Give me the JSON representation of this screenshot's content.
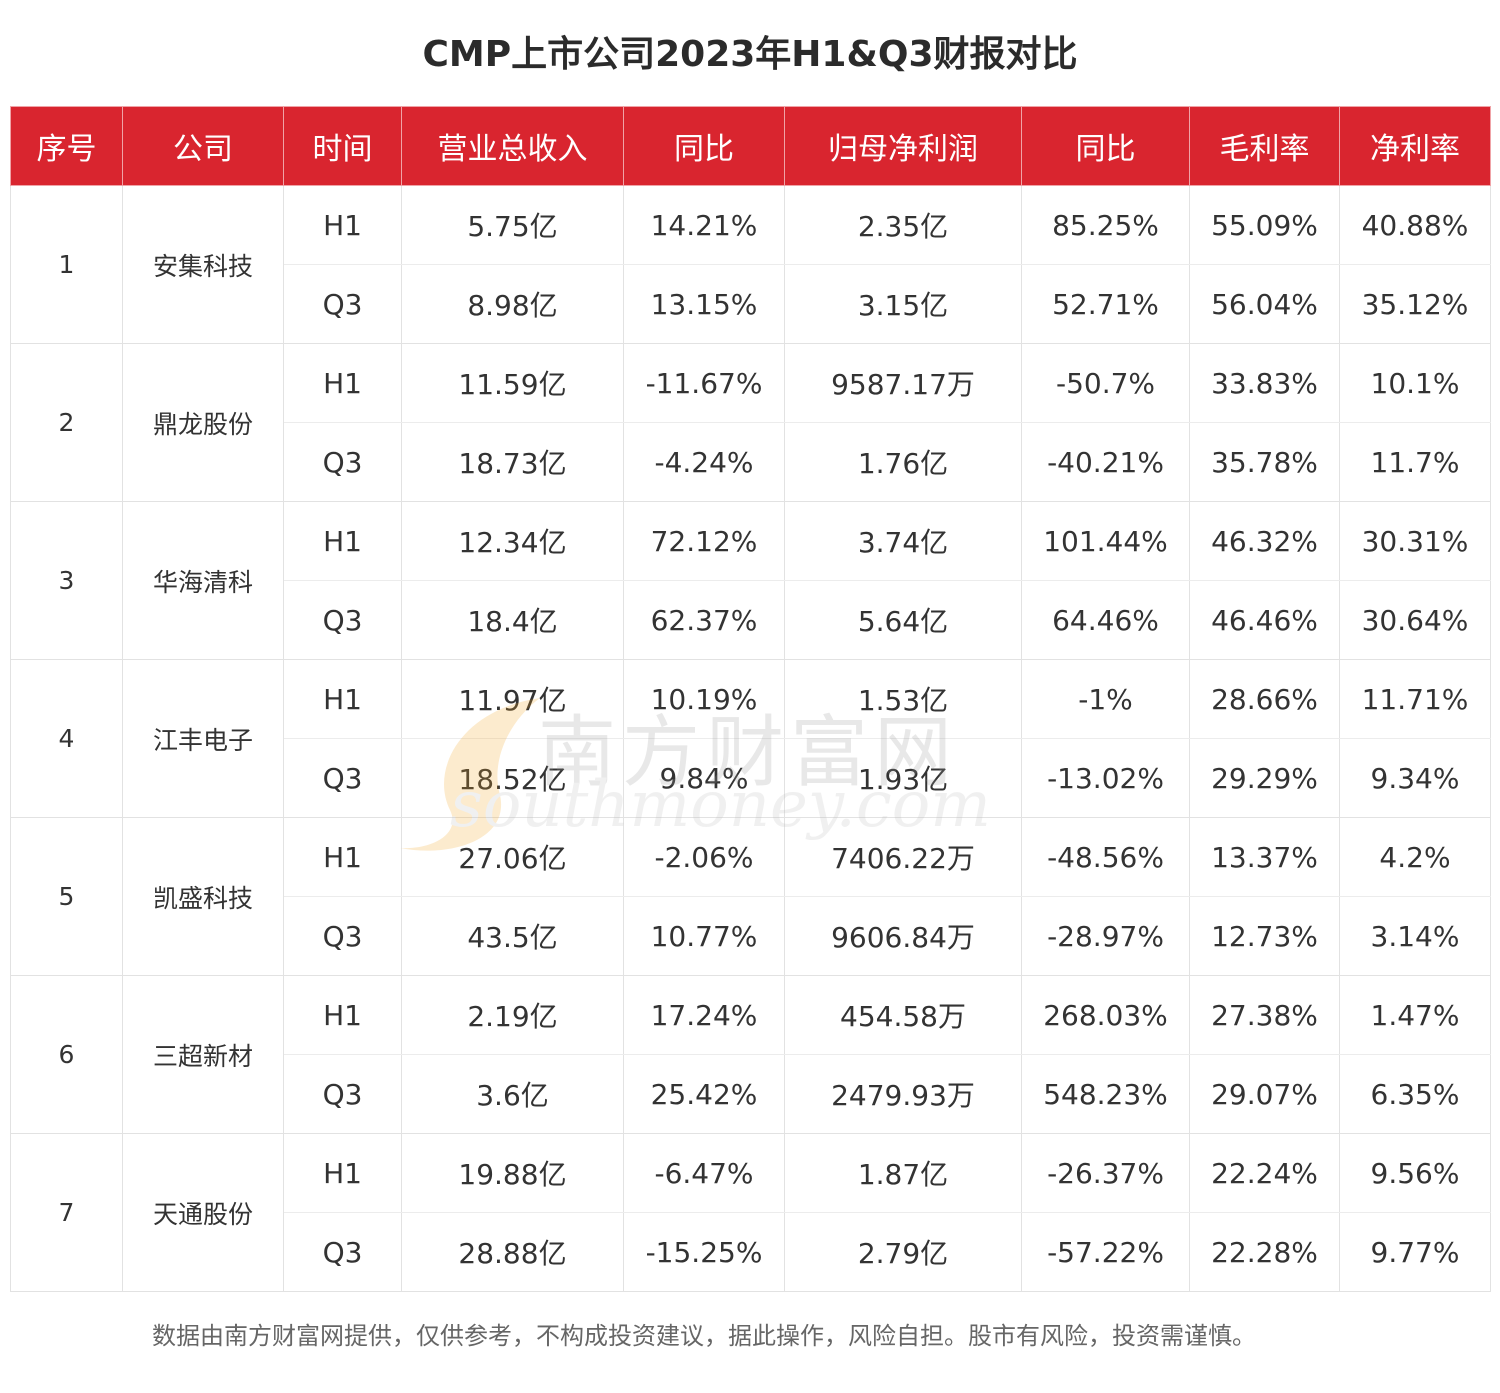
{
  "title": "CMP上市公司2023年H1&Q3财报对比",
  "headers": [
    "序号",
    "公司",
    "时间",
    "营业总收入",
    "同比",
    "归母净利润",
    "同比",
    "毛利率",
    "净利率"
  ],
  "rows": [
    {
      "idx": "1",
      "company": "安集科技",
      "periods": [
        {
          "period": "H1",
          "values": [
            "5.75亿",
            "14.21%",
            "2.35亿",
            "85.25%",
            "55.09%",
            "40.88%"
          ]
        },
        {
          "period": "Q3",
          "values": [
            "8.98亿",
            "13.15%",
            "3.15亿",
            "52.71%",
            "56.04%",
            "35.12%"
          ]
        }
      ]
    },
    {
      "idx": "2",
      "company": "鼎龙股份",
      "periods": [
        {
          "period": "H1",
          "values": [
            "11.59亿",
            "-11.67%",
            "9587.17万",
            "-50.7%",
            "33.83%",
            "10.1%"
          ]
        },
        {
          "period": "Q3",
          "values": [
            "18.73亿",
            "-4.24%",
            "1.76亿",
            "-40.21%",
            "35.78%",
            "11.7%"
          ]
        }
      ]
    },
    {
      "idx": "3",
      "company": "华海清科",
      "periods": [
        {
          "period": "H1",
          "values": [
            "12.34亿",
            "72.12%",
            "3.74亿",
            "101.44%",
            "46.32%",
            "30.31%"
          ]
        },
        {
          "period": "Q3",
          "values": [
            "18.4亿",
            "62.37%",
            "5.64亿",
            "64.46%",
            "46.46%",
            "30.64%"
          ]
        }
      ]
    },
    {
      "idx": "4",
      "company": "江丰电子",
      "periods": [
        {
          "period": "H1",
          "values": [
            "11.97亿",
            "10.19%",
            "1.53亿",
            "-1%",
            "28.66%",
            "11.71%"
          ]
        },
        {
          "period": "Q3",
          "values": [
            "18.52亿",
            "9.84%",
            "1.93亿",
            "-13.02%",
            "29.29%",
            "9.34%"
          ]
        }
      ]
    },
    {
      "idx": "5",
      "company": "凯盛科技",
      "periods": [
        {
          "period": "H1",
          "values": [
            "27.06亿",
            "-2.06%",
            "7406.22万",
            "-48.56%",
            "13.37%",
            "4.2%"
          ]
        },
        {
          "period": "Q3",
          "values": [
            "43.5亿",
            "10.77%",
            "9606.84万",
            "-28.97%",
            "12.73%",
            "3.14%"
          ]
        }
      ]
    },
    {
      "idx": "6",
      "company": "三超新材",
      "periods": [
        {
          "period": "H1",
          "values": [
            "2.19亿",
            "17.24%",
            "454.58万",
            "268.03%",
            "27.38%",
            "1.47%"
          ]
        },
        {
          "period": "Q3",
          "values": [
            "3.6亿",
            "25.42%",
            "2479.93万",
            "548.23%",
            "29.07%",
            "6.35%"
          ]
        }
      ]
    },
    {
      "idx": "7",
      "company": "天通股份",
      "periods": [
        {
          "period": "H1",
          "values": [
            "19.88亿",
            "-6.47%",
            "1.87亿",
            "-26.37%",
            "22.24%",
            "9.56%"
          ]
        },
        {
          "period": "Q3",
          "values": [
            "28.88亿",
            "-15.25%",
            "2.79亿",
            "-57.22%",
            "22.28%",
            "9.77%"
          ]
        }
      ]
    }
  ],
  "watermark": {
    "cn": "南方财富网",
    "en": "southmoney.com"
  },
  "footer": "数据由南方财富网提供，仅供参考，不构成投资建议，据此操作，风险自担。股市有风险，投资需谨慎。",
  "colors": {
    "header_bg": "#d9252f",
    "header_text": "#ffffff",
    "border": "#e2e2e2",
    "watermark_orange": "#f5a623"
  }
}
